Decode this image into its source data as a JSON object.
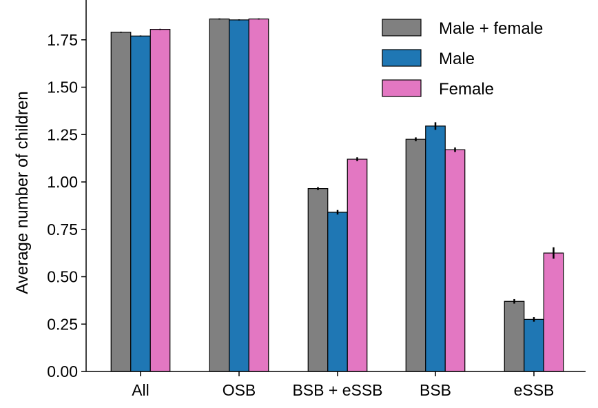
{
  "chart_data": {
    "type": "bar",
    "title": "",
    "xlabel": "",
    "ylabel": "Average number of children",
    "categories": [
      "All",
      "OSB",
      "BSB + eSSB",
      "BSB",
      "eSSB"
    ],
    "series": [
      {
        "name": "Male + female",
        "color": "#808080",
        "values": [
          1.79,
          1.86,
          0.965,
          1.225,
          0.37
        ],
        "errors": [
          0.003,
          0.003,
          0.008,
          0.01,
          0.012
        ]
      },
      {
        "name": "Male",
        "color": "#1f77b4",
        "values": [
          1.77,
          1.855,
          0.84,
          1.295,
          0.275
        ],
        "errors": [
          0.003,
          0.003,
          0.012,
          0.02,
          0.012
        ]
      },
      {
        "name": "Female",
        "color": "#e377c2",
        "values": [
          1.805,
          1.86,
          1.12,
          1.17,
          0.625
        ],
        "errors": [
          0.003,
          0.003,
          0.01,
          0.012,
          0.03
        ]
      }
    ],
    "ylim": [
      0,
      1.96
    ],
    "yticks": [
      "0.00",
      "0.25",
      "0.50",
      "0.75",
      "1.00",
      "1.25",
      "1.50",
      "1.75"
    ],
    "grid": false,
    "legend": "top-right",
    "spines": [
      "left",
      "bottom"
    ]
  }
}
